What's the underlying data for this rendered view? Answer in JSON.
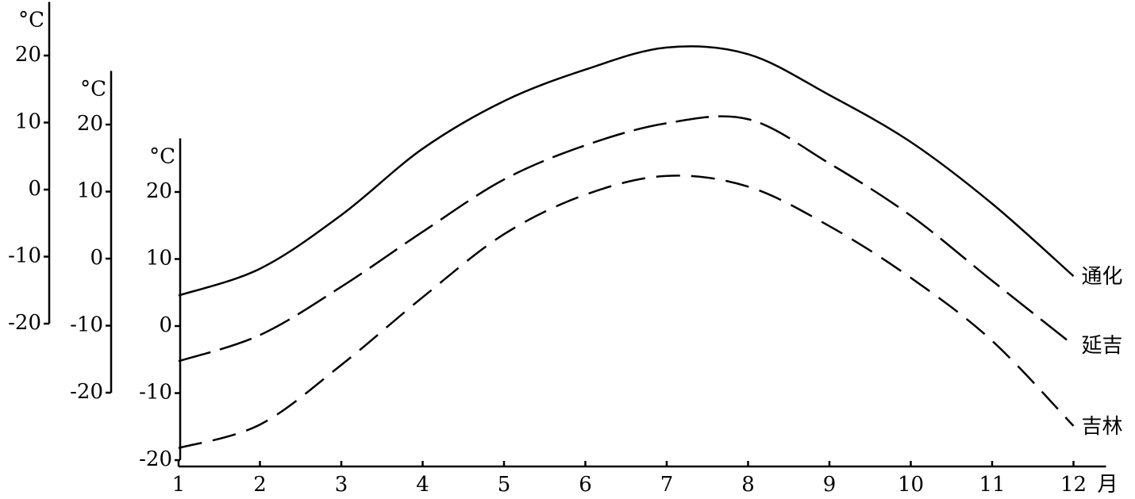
{
  "chart_data": {
    "type": "line",
    "x": [
      1,
      2,
      3,
      4,
      5,
      6,
      7,
      8,
      9,
      10,
      11,
      12
    ],
    "xlim": [
      1,
      12.4
    ],
    "xticks": [
      1,
      2,
      3,
      4,
      5,
      6,
      7,
      8,
      9,
      10,
      11,
      12
    ],
    "x_unit": "月",
    "series": [
      {
        "name": "通化",
        "color": "#000000",
        "dash": "solid",
        "y_unit": "°C",
        "ylim": [
          -20,
          28
        ],
        "yticks": [
          -20,
          -10,
          0,
          10,
          20
        ],
        "values": [
          -15.8,
          -11.8,
          -3.8,
          6.1,
          13.2,
          17.9,
          21.2,
          20.2,
          14.1,
          7.1,
          -2.1,
          -12.9
        ]
      },
      {
        "name": "延吉",
        "color": "#000000",
        "dash": "long-dash",
        "y_unit": "°C",
        "ylim": [
          -20,
          28
        ],
        "yticks": [
          -20,
          -10,
          0,
          10,
          20
        ],
        "values": [
          -15.3,
          -11.4,
          -4.2,
          4.0,
          11.8,
          16.9,
          20.2,
          20.8,
          14.2,
          6.4,
          -3.3,
          -12.9
        ]
      },
      {
        "name": "吉林",
        "color": "#000000",
        "dash": "dash",
        "y_unit": "°C",
        "ylim": [
          -20,
          28
        ],
        "yticks": [
          -20,
          -10,
          0,
          10,
          20
        ],
        "values": [
          -18.2,
          -14.7,
          -5.8,
          4.3,
          13.7,
          19.6,
          22.4,
          20.8,
          14.9,
          7.2,
          -2.2,
          -14.9
        ]
      }
    ]
  }
}
